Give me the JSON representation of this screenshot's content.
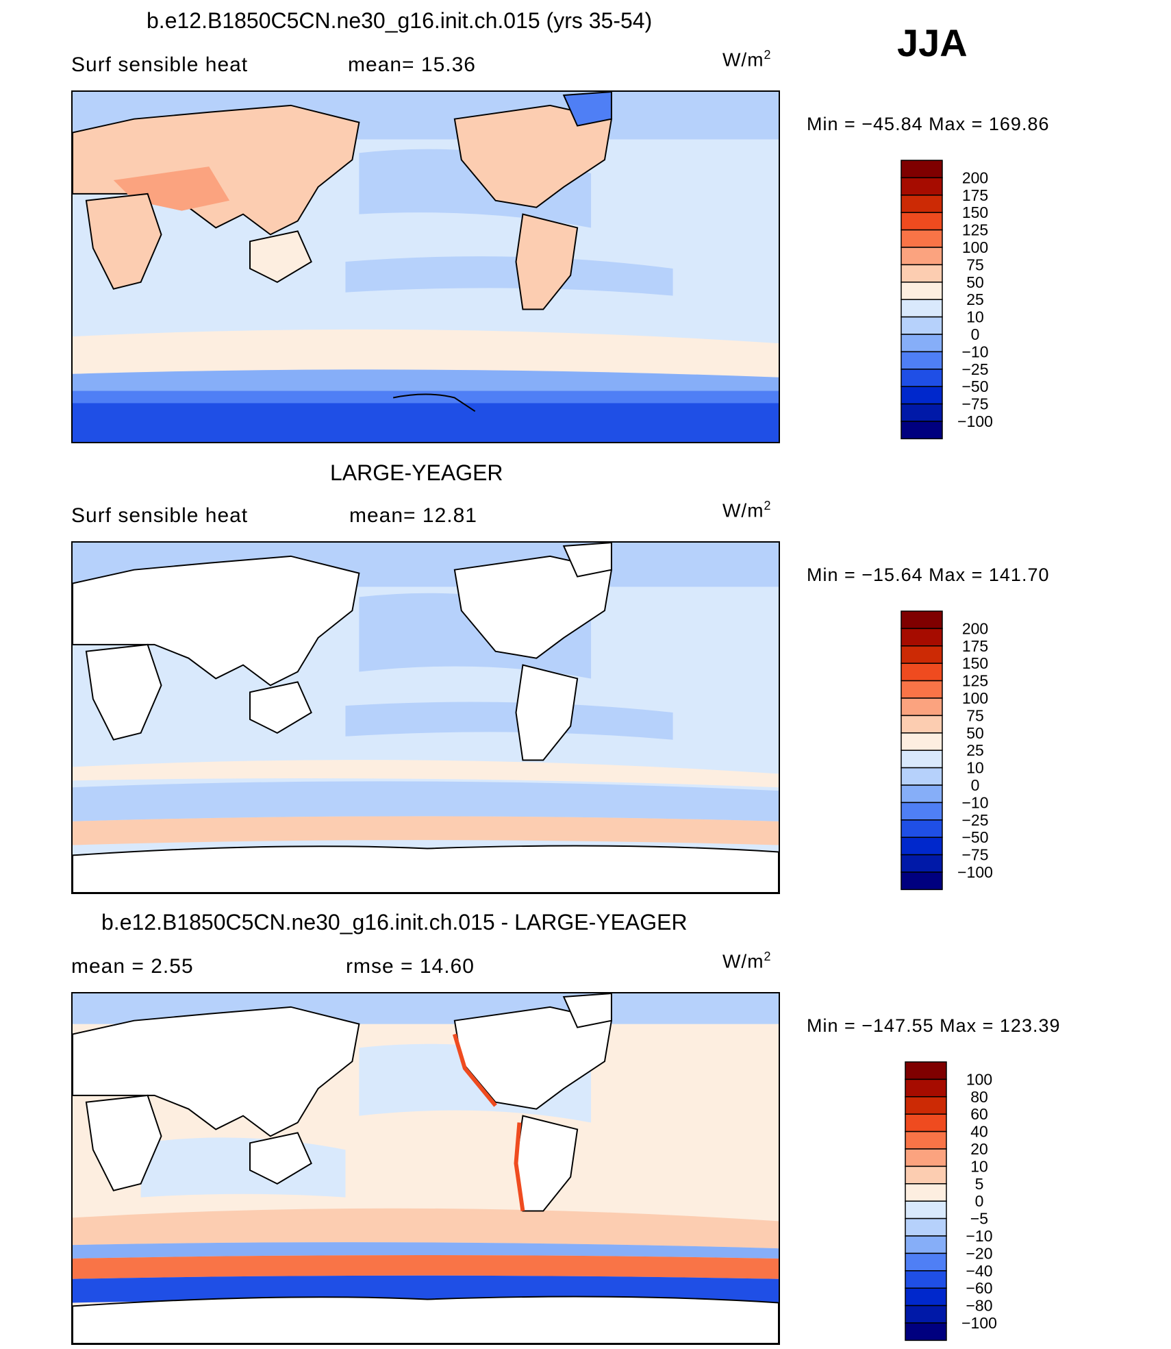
{
  "season": "JJA",
  "colors": {
    "scale_a": [
      "#00007f",
      "#0019a8",
      "#0028cc",
      "#1f4fe6",
      "#4f7ff5",
      "#86aef8",
      "#b6d1fb",
      "#d9e9fc",
      "#fdeee0",
      "#fccdb1",
      "#fba37f",
      "#f97447",
      "#ef4b1f",
      "#cc2a05",
      "#a60c00",
      "#7f0000"
    ],
    "scale_b": [
      "#00007f",
      "#0019a8",
      "#0028cc",
      "#1f4fe6",
      "#4f7ff5",
      "#86aef8",
      "#b6d1fb",
      "#d9e9fc",
      "#fdeee0",
      "#fccdb1",
      "#fba37f",
      "#f97447",
      "#ef4b1f",
      "#cc2a05",
      "#a60c00",
      "#7f0000"
    ],
    "scale_diff": [
      "#00007f",
      "#0019a8",
      "#0028cc",
      "#1f4fe6",
      "#4f7ff5",
      "#86aef8",
      "#b6d1fb",
      "#d9e9fc",
      "#fdeee0",
      "#fccdb1",
      "#fba37f",
      "#f97447",
      "#ef4b1f",
      "#cc2a05",
      "#a60c00",
      "#7f0000"
    ]
  },
  "panels": [
    {
      "title": "b.e12.B1850C5CN.ne30_g16.init.ch.015 (yrs 35-54)",
      "left_label": "Surf  sensible  heat",
      "mid_label": "mean=   15.36",
      "units": "W/m",
      "units_sup": "2",
      "minmax": "Min  =  −45.84  Max  =  169.86",
      "colorbar_labels": [
        "200",
        "175",
        "150",
        "125",
        "100",
        "75",
        "50",
        "25",
        "10",
        "0",
        "−10",
        "−25",
        "−50",
        "−75",
        "−100"
      ]
    },
    {
      "title": "LARGE-YEAGER",
      "left_label": "Surf  sensible  heat",
      "mid_label": "mean=   12.81",
      "units": "W/m",
      "units_sup": "2",
      "minmax": "Min  =  −15.64  Max  =  141.70",
      "colorbar_labels": [
        "200",
        "175",
        "150",
        "125",
        "100",
        "75",
        "50",
        "25",
        "10",
        "0",
        "−10",
        "−25",
        "−50",
        "−75",
        "−100"
      ]
    },
    {
      "title": "b.e12.B1850C5CN.ne30_g16.init.ch.015 - LARGE-YEAGER",
      "left_label": "mean  =      2.55",
      "mid_label": "rmse  =    14.60",
      "units": "W/m",
      "units_sup": "2",
      "minmax": "Min  =  −147.55  Max  =  123.39",
      "colorbar_labels": [
        "100",
        "80",
        "60",
        "40",
        "20",
        "10",
        "5",
        "0",
        "−5",
        "−10",
        "−20",
        "−40",
        "−60",
        "−80",
        "−100"
      ]
    }
  ]
}
